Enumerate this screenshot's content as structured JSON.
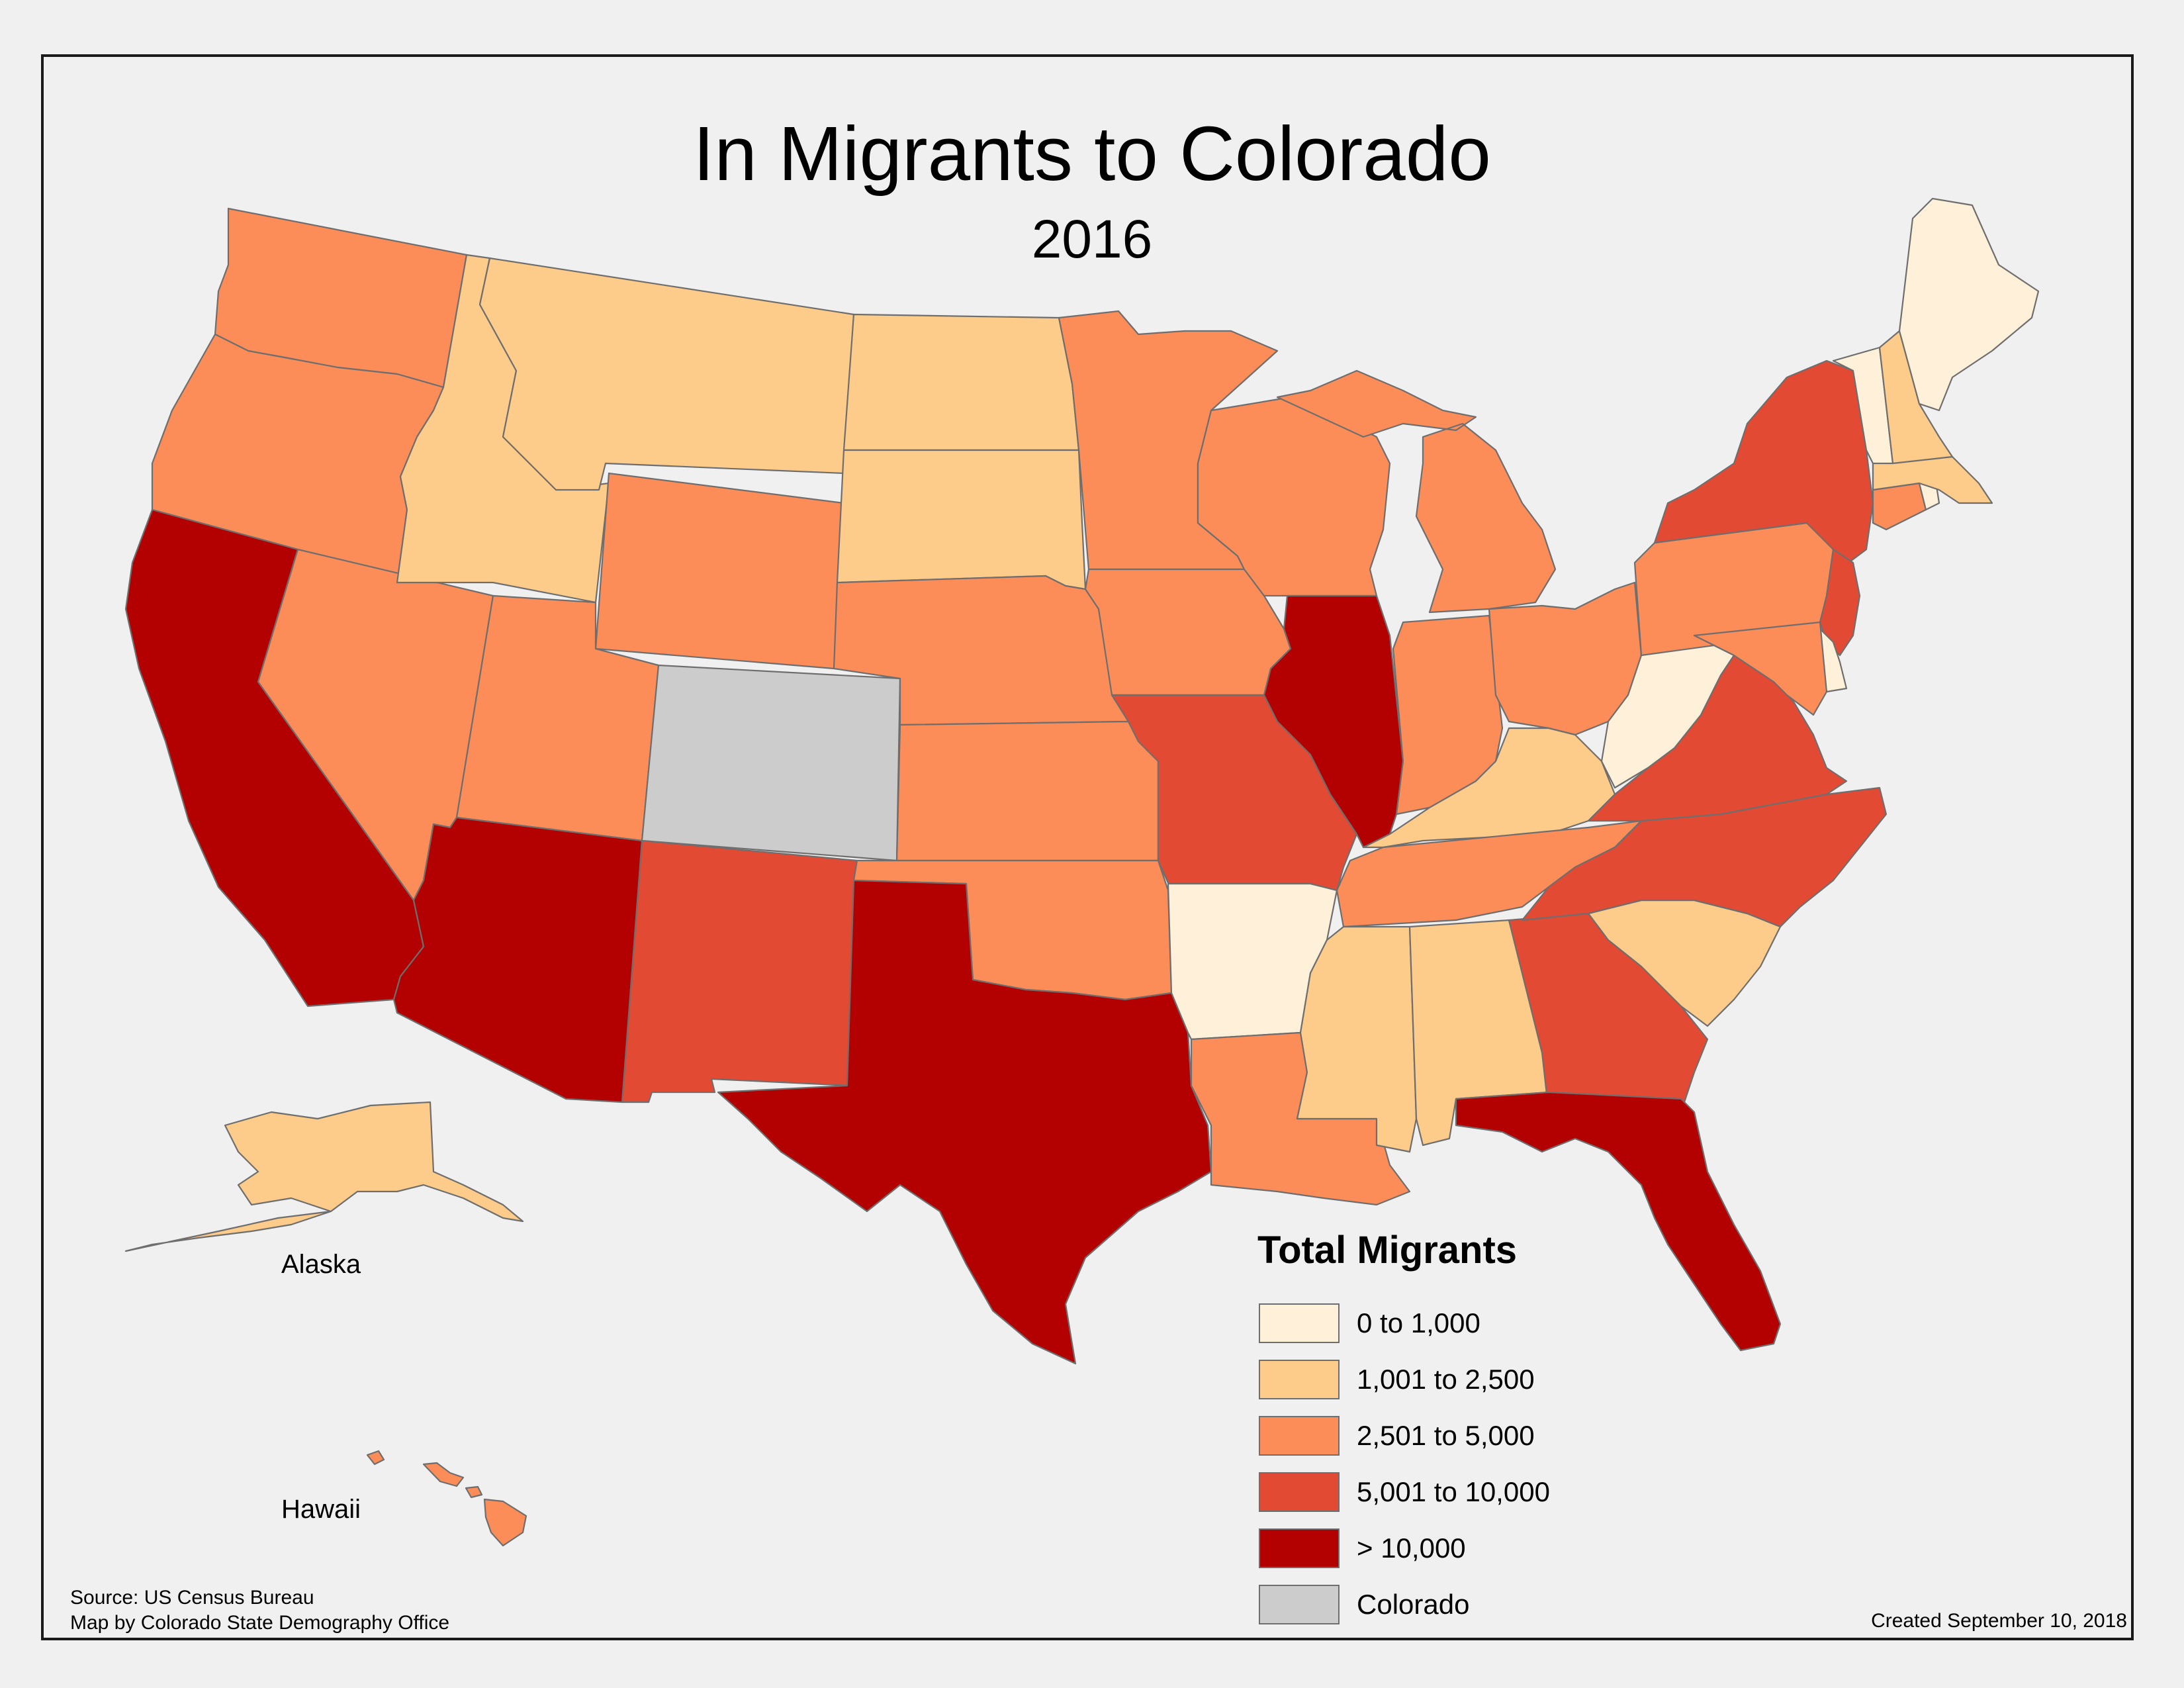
{
  "title": "In Migrants to Colorado",
  "subtitle": "2016",
  "legend": {
    "title": "Total Migrants",
    "classes": [
      {
        "label": "0 to 1,000",
        "color": "#fef0d9"
      },
      {
        "label": "1,001 to 2,500",
        "color": "#fdcc8a"
      },
      {
        "label": "2,501 to 5,000",
        "color": "#fc8d59"
      },
      {
        "label": "5,001 to 10,000",
        "color": "#e34a33"
      },
      {
        "label": "> 10,000",
        "color": "#b30000"
      },
      {
        "label": "Colorado",
        "color": "#cccccc"
      }
    ]
  },
  "insets": {
    "alaska": "Alaska",
    "hawaii": "Hawaii"
  },
  "states": [
    {
      "name": "Washington",
      "class": 2
    },
    {
      "name": "Oregon",
      "class": 2
    },
    {
      "name": "California",
      "class": 4
    },
    {
      "name": "Nevada",
      "class": 2
    },
    {
      "name": "Idaho",
      "class": 1
    },
    {
      "name": "Montana",
      "class": 1
    },
    {
      "name": "Wyoming",
      "class": 2
    },
    {
      "name": "Utah",
      "class": 2
    },
    {
      "name": "Arizona",
      "class": 4
    },
    {
      "name": "Colorado",
      "class": 5
    },
    {
      "name": "New Mexico",
      "class": 3
    },
    {
      "name": "North Dakota",
      "class": 1
    },
    {
      "name": "South Dakota",
      "class": 1
    },
    {
      "name": "Nebraska",
      "class": 2
    },
    {
      "name": "Kansas",
      "class": 2
    },
    {
      "name": "Oklahoma",
      "class": 2
    },
    {
      "name": "Texas",
      "class": 4
    },
    {
      "name": "Minnesota",
      "class": 2
    },
    {
      "name": "Iowa",
      "class": 2
    },
    {
      "name": "Missouri",
      "class": 3
    },
    {
      "name": "Arkansas",
      "class": 0
    },
    {
      "name": "Louisiana",
      "class": 2
    },
    {
      "name": "Wisconsin",
      "class": 2
    },
    {
      "name": "Illinois",
      "class": 4
    },
    {
      "name": "Michigan",
      "class": 2
    },
    {
      "name": "Indiana",
      "class": 2
    },
    {
      "name": "Ohio",
      "class": 2
    },
    {
      "name": "Kentucky",
      "class": 1
    },
    {
      "name": "Tennessee",
      "class": 2
    },
    {
      "name": "Mississippi",
      "class": 1
    },
    {
      "name": "Alabama",
      "class": 1
    },
    {
      "name": "Georgia",
      "class": 3
    },
    {
      "name": "Florida",
      "class": 4
    },
    {
      "name": "South Carolina",
      "class": 1
    },
    {
      "name": "North Carolina",
      "class": 3
    },
    {
      "name": "Virginia",
      "class": 3
    },
    {
      "name": "West Virginia",
      "class": 0
    },
    {
      "name": "Pennsylvania",
      "class": 2
    },
    {
      "name": "New York",
      "class": 3
    },
    {
      "name": "New Jersey",
      "class": 3
    },
    {
      "name": "Delaware",
      "class": 0
    },
    {
      "name": "Maryland",
      "class": 2
    },
    {
      "name": "Connecticut",
      "class": 2
    },
    {
      "name": "Rhode Island",
      "class": 0
    },
    {
      "name": "Massachusetts",
      "class": 1
    },
    {
      "name": "Vermont",
      "class": 0
    },
    {
      "name": "New Hampshire",
      "class": 1
    },
    {
      "name": "Maine",
      "class": 0
    },
    {
      "name": "Alaska",
      "class": 1
    },
    {
      "name": "Hawaii",
      "class": 2
    }
  ],
  "source": {
    "line1": "Source: US Census Bureau",
    "line2": "Map by Colorado State Demography Office"
  },
  "created": "Created September 10, 2018"
}
